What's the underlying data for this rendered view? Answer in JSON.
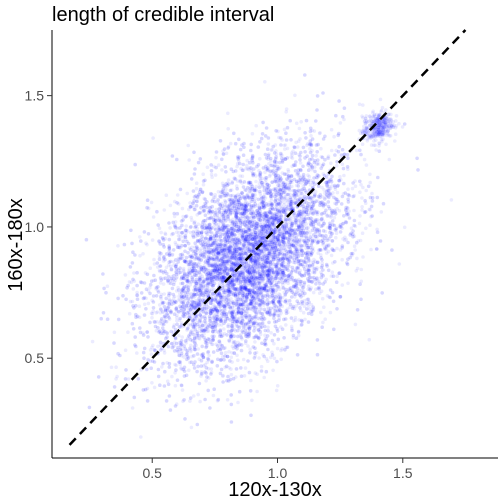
{
  "chart_data": {
    "type": "scatter",
    "title": "length of credible interval",
    "xlabel": "120x-130x",
    "ylabel": "160x-180x",
    "xlim": [
      0.1,
      1.88
    ],
    "ylim": [
      0.12,
      1.75
    ],
    "x_ticks": [
      0.5,
      1.0,
      1.5
    ],
    "x_tick_labels": [
      "0.5",
      "1.0",
      "1.5"
    ],
    "y_ticks": [
      0.5,
      1.0,
      1.5
    ],
    "y_tick_labels": [
      "0.5",
      "1.0",
      "1.5"
    ],
    "grid": false,
    "reference_line": {
      "type": "identity",
      "style": "dashed",
      "color": "#000000",
      "description": "y = x"
    },
    "series": [
      {
        "color": "#0000ff",
        "opacity": 0.08,
        "clusters": [
          {
            "center_x": 0.88,
            "center_y": 0.88,
            "sd_x": 0.19,
            "sd_y": 0.2,
            "correlation": 0.45,
            "n": 9000
          },
          {
            "center_x": 1.4,
            "center_y": 1.38,
            "sd_x": 0.03,
            "sd_y": 0.03,
            "correlation": 0.3,
            "n": 350
          }
        ]
      }
    ]
  }
}
